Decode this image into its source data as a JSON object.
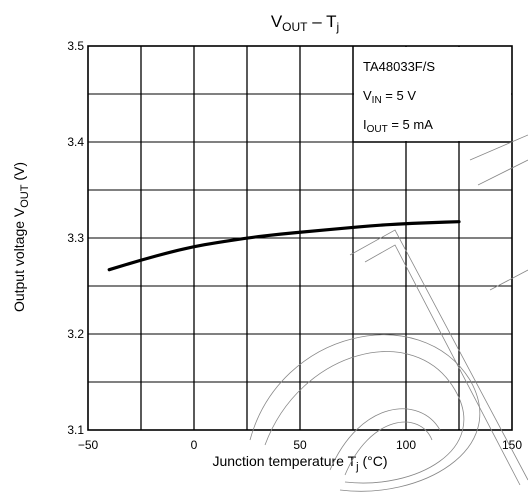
{
  "chart_data": {
    "type": "line",
    "title": {
      "main": "V",
      "sub": "OUT",
      "sep": " – T",
      "sub2": "j"
    },
    "xlabel": {
      "text": "Junction temperature    T",
      "sub": "j",
      "unit": "    (°C)"
    },
    "ylabel": {
      "text": "Output voltage    V",
      "sub": "OUT",
      "unit": "    (V)"
    },
    "xlim": [
      -50,
      150
    ],
    "ylim": [
      3.1,
      3.5
    ],
    "x_ticks": [
      -50,
      0,
      50,
      100,
      150
    ],
    "x_tick_labels": [
      "−50",
      "0",
      "50",
      "100",
      "150"
    ],
    "y_ticks": [
      3.1,
      3.2,
      3.3,
      3.4,
      3.5
    ],
    "y_tick_labels": [
      "3.1",
      "3.2",
      "3.3",
      "3.4",
      "3.5"
    ],
    "x_minor_step": 25,
    "y_minor_step": 0.05,
    "grid": true,
    "legend_position": "top-right",
    "annotation": [
      {
        "text": "TA48033F/S"
      },
      {
        "main": "V",
        "sub": "IN",
        "rest": " = 5 V"
      },
      {
        "main": "I",
        "sub": "OUT",
        "rest": " = 5 mA"
      }
    ],
    "series": [
      {
        "x": [
          -40,
          -25,
          -10,
          0,
          10,
          25,
          40,
          55,
          70,
          85,
          100,
          112,
          125
        ],
        "y": [
          3.267,
          3.277,
          3.286,
          3.291,
          3.295,
          3.3,
          3.304,
          3.307,
          3.31,
          3.313,
          3.315,
          3.316,
          3.317
        ]
      }
    ]
  }
}
